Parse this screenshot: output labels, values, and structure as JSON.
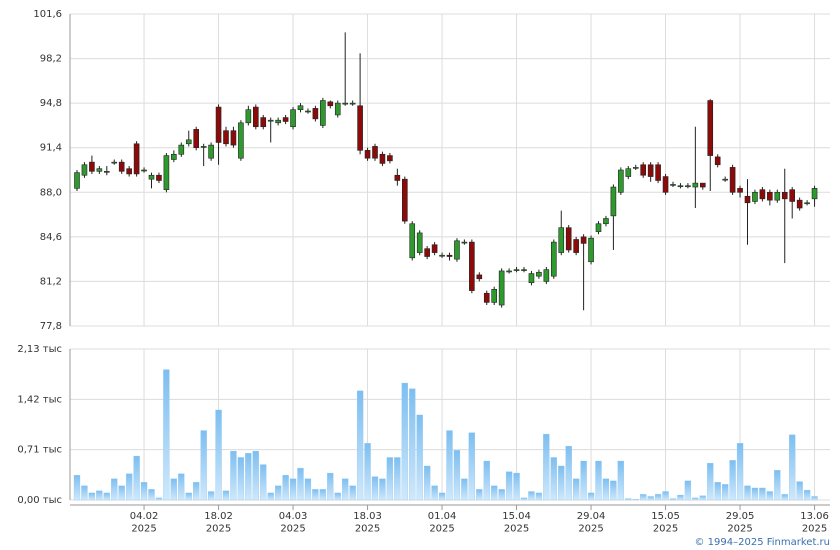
{
  "chart_data": [
    {
      "type": "candlestick",
      "open": [
        88.3,
        89.3,
        90.3,
        89.6,
        89.6,
        90.3,
        90.3,
        89.8,
        91.7,
        89.7,
        89.0,
        89.3,
        88.2,
        90.5,
        90.9,
        91.7,
        92.8,
        91.5,
        90.6,
        94.5,
        92.7,
        92.7,
        90.6,
        93.3,
        94.5,
        93.7,
        93.5,
        93.3,
        93.7,
        93.0,
        94.3,
        94.2,
        94.4,
        93.1,
        94.9,
        93.9,
        94.8,
        94.8,
        94.6,
        91.2,
        91.5,
        90.9,
        90.8,
        89.3,
        89.0,
        83.0,
        83.4,
        83.7,
        84.0,
        83.2,
        83.2,
        82.9,
        84.2,
        84.2,
        81.7,
        80.3,
        79.6,
        79.4,
        82.0,
        82.1,
        82.1,
        81.1,
        81.6,
        81.2,
        81.6,
        83.4,
        85.3,
        84.4,
        84.6,
        82.7,
        85.0,
        85.6,
        86.2,
        88.0,
        89.2,
        89.9,
        90.1,
        90.1,
        90.1,
        89.2,
        88.6,
        88.5,
        88.5,
        88.4,
        88.7,
        95.0,
        90.7,
        89.0,
        89.9,
        88.3,
        87.7,
        87.3,
        88.2,
        88.0,
        87.4,
        88.0,
        88.2,
        87.4,
        87.2,
        87.5
      ],
      "high": [
        89.7,
        90.3,
        90.8,
        90.0,
        90.0,
        90.5,
        90.5,
        90.0,
        91.9,
        89.9,
        89.5,
        89.5,
        91.0,
        91.2,
        91.8,
        92.7,
        93.0,
        91.7,
        91.8,
        94.7,
        93.0,
        93.0,
        93.5,
        94.6,
        94.7,
        93.9,
        93.7,
        93.7,
        93.9,
        94.5,
        94.8,
        94.4,
        94.6,
        95.2,
        95.0,
        95.0,
        100.2,
        95.0,
        98.6,
        91.4,
        91.7,
        91.1,
        91.0,
        89.8,
        89.2,
        85.8,
        85.1,
        83.9,
        84.2,
        83.4,
        83.4,
        84.5,
        84.4,
        84.4,
        81.9,
        80.5,
        80.8,
        82.2,
        82.2,
        82.3,
        82.3,
        82.0,
        82.1,
        82.3,
        84.4,
        86.6,
        85.5,
        84.6,
        84.8,
        84.7,
        85.8,
        86.2,
        88.6,
        89.9,
        90.0,
        90.1,
        90.3,
        90.3,
        90.3,
        89.4,
        88.8,
        88.7,
        88.7,
        93.0,
        88.6,
        95.1,
        90.9,
        89.2,
        90.1,
        88.5,
        89.0,
        88.2,
        88.4,
        88.2,
        88.2,
        89.8,
        88.4,
        87.6,
        87.4,
        88.5
      ],
      "low": [
        88.1,
        89.1,
        89.4,
        89.4,
        89.3,
        90.1,
        89.4,
        89.2,
        89.2,
        89.5,
        88.3,
        88.7,
        88.0,
        90.3,
        90.7,
        91.5,
        91.2,
        90.0,
        90.4,
        90.1,
        91.5,
        91.4,
        90.4,
        93.1,
        92.8,
        92.8,
        91.8,
        93.1,
        93.2,
        92.8,
        94.1,
        94.0,
        93.4,
        92.9,
        94.4,
        93.7,
        94.6,
        94.6,
        90.9,
        90.4,
        90.4,
        90.0,
        90.2,
        88.5,
        85.6,
        82.8,
        83.2,
        82.9,
        83.2,
        83.0,
        82.8,
        82.7,
        84.0,
        80.3,
        81.2,
        79.4,
        79.4,
        79.2,
        81.8,
        81.9,
        81.9,
        80.9,
        81.4,
        81.0,
        81.4,
        83.2,
        83.4,
        83.2,
        79.0,
        82.5,
        84.8,
        85.4,
        83.6,
        87.8,
        89.0,
        89.7,
        89.1,
        88.8,
        88.7,
        87.8,
        88.4,
        88.3,
        88.3,
        86.8,
        88.2,
        88.1,
        89.9,
        88.8,
        87.8,
        87.6,
        84.0,
        87.1,
        87.3,
        87.0,
        87.2,
        82.6,
        86.0,
        86.6,
        87.0,
        86.9
      ],
      "close": [
        89.5,
        90.1,
        89.6,
        89.8,
        89.6,
        90.3,
        89.6,
        89.4,
        89.4,
        89.7,
        89.3,
        88.9,
        90.8,
        90.9,
        91.6,
        92.0,
        91.4,
        91.5,
        91.6,
        91.8,
        91.7,
        91.6,
        93.3,
        94.3,
        93.0,
        93.0,
        93.5,
        93.5,
        93.4,
        94.3,
        94.6,
        94.2,
        93.6,
        95.0,
        94.6,
        94.8,
        94.8,
        94.8,
        91.2,
        90.6,
        90.6,
        90.2,
        90.4,
        88.9,
        85.8,
        85.6,
        84.9,
        83.1,
        83.4,
        83.2,
        83.1,
        84.3,
        84.2,
        80.5,
        81.4,
        79.6,
        80.6,
        82.0,
        82.0,
        82.1,
        82.1,
        81.8,
        81.9,
        82.1,
        84.2,
        85.3,
        83.6,
        83.4,
        84.1,
        84.5,
        85.6,
        86.0,
        88.4,
        89.7,
        89.8,
        89.9,
        89.3,
        89.2,
        88.9,
        88.0,
        88.6,
        88.5,
        88.5,
        88.7,
        88.4,
        90.8,
        90.1,
        89.0,
        88.0,
        88.0,
        87.2,
        88.0,
        87.5,
        87.4,
        88.0,
        87.5,
        87.3,
        86.8,
        87.2,
        88.3
      ],
      "up_color": "#2e9a2e",
      "down_color": "#8b0a0a",
      "ylim": [
        77.8,
        101.6
      ],
      "yticks": [
        {
          "value": 77.8,
          "label": "77,8"
        },
        {
          "value": 81.2,
          "label": "81,2"
        },
        {
          "value": 84.6,
          "label": "84,6"
        },
        {
          "value": 88.0,
          "label": "88,0"
        },
        {
          "value": 91.4,
          "label": "91,4"
        },
        {
          "value": 94.8,
          "label": "94,8"
        },
        {
          "value": 98.2,
          "label": "98,2"
        },
        {
          "value": 101.6,
          "label": "101,6"
        }
      ],
      "grid": true
    },
    {
      "type": "bar",
      "categories": [
        null,
        null,
        null,
        null,
        null,
        null,
        null,
        null,
        null,
        "04.02\n2025",
        null,
        null,
        null,
        null,
        null,
        null,
        null,
        null,
        null,
        "18.02\n2025",
        null,
        null,
        null,
        null,
        null,
        null,
        null,
        null,
        null,
        "04.03\n2025",
        null,
        null,
        null,
        null,
        null,
        null,
        null,
        null,
        null,
        "18.03\n2025",
        null,
        null,
        null,
        null,
        null,
        null,
        null,
        null,
        null,
        "01.04\n2025",
        null,
        null,
        null,
        null,
        null,
        null,
        null,
        null,
        null,
        "15.04\n2025",
        null,
        null,
        null,
        null,
        null,
        null,
        null,
        null,
        null,
        "29.04\n2025",
        null,
        null,
        null,
        null,
        null,
        null,
        null,
        null,
        null,
        "15.05\n2025",
        null,
        null,
        null,
        null,
        null,
        null,
        null,
        null,
        null,
        "29.05\n2025",
        null,
        null,
        null,
        null,
        null,
        null,
        null,
        null,
        null,
        "13.06\n2025"
      ],
      "values": [
        0.35,
        0.2,
        0.1,
        0.13,
        0.1,
        0.3,
        0.2,
        0.37,
        0.62,
        0.25,
        0.15,
        0.03,
        1.84,
        0.3,
        0.37,
        0.1,
        0.25,
        0.98,
        0.12,
        1.27,
        0.13,
        0.69,
        0.6,
        0.66,
        0.69,
        0.5,
        0.1,
        0.2,
        0.35,
        0.3,
        0.45,
        0.3,
        0.15,
        0.15,
        0.38,
        0.1,
        0.3,
        0.2,
        1.54,
        0.8,
        0.33,
        0.3,
        0.6,
        0.6,
        1.65,
        1.57,
        1.2,
        0.48,
        0.2,
        0.1,
        0.98,
        0.7,
        0.3,
        0.95,
        0.15,
        0.55,
        0.2,
        0.15,
        0.4,
        0.38,
        0.03,
        0.12,
        0.1,
        0.93,
        0.6,
        0.48,
        0.76,
        0.3,
        0.55,
        0.1,
        0.55,
        0.3,
        0.27,
        0.55,
        0.02,
        0.01,
        0.08,
        0.05,
        0.08,
        0.12,
        0.02,
        0.07,
        0.27,
        0.03,
        0.06,
        0.52,
        0.25,
        0.22,
        0.56,
        0.8,
        0.2,
        0.17,
        0.17,
        0.12,
        0.42,
        0.08,
        0.92,
        0.26,
        0.14,
        0.05
      ],
      "color": "#8ec8f2",
      "ylim": [
        0,
        2.13
      ],
      "yticks": [
        {
          "value": 0,
          "label": "0,00 тыс"
        },
        {
          "value": 0.71,
          "label": "0,71 тыс"
        },
        {
          "value": 1.42,
          "label": "1,42 тыс"
        },
        {
          "value": 2.13,
          "label": "2,13 тыс"
        }
      ],
      "grid": true
    }
  ],
  "source": "© 1994–2025 Finmarket.ru"
}
